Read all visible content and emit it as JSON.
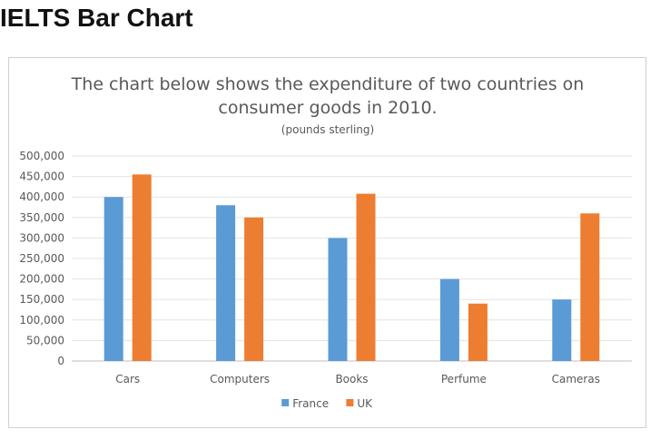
{
  "page": {
    "heading": "IELTS Bar Chart"
  },
  "chart_data": {
    "type": "bar",
    "title_lines": [
      "The chart below shows the expenditure of two countries on",
      "consumer goods in 2010."
    ],
    "subtitle": "(pounds sterling)",
    "xlabel": "",
    "ylabel": "",
    "categories": [
      "Cars",
      "Computers",
      "Books",
      "Perfume",
      "Cameras"
    ],
    "series": [
      {
        "name": "France",
        "color": "#5b9bd5",
        "values": [
          400000,
          380000,
          300000,
          200000,
          150000
        ]
      },
      {
        "name": "UK",
        "color": "#ed7d31",
        "values": [
          455000,
          350000,
          408000,
          140000,
          360000
        ]
      }
    ],
    "ylim": [
      0,
      500000
    ],
    "yticks": [
      "0",
      "50,000",
      "100,000",
      "150,000",
      "200,000",
      "250,000",
      "300,000",
      "350,000",
      "400,000",
      "450,000",
      "500,000"
    ],
    "grid": true,
    "legend_position": "bottom-center"
  }
}
